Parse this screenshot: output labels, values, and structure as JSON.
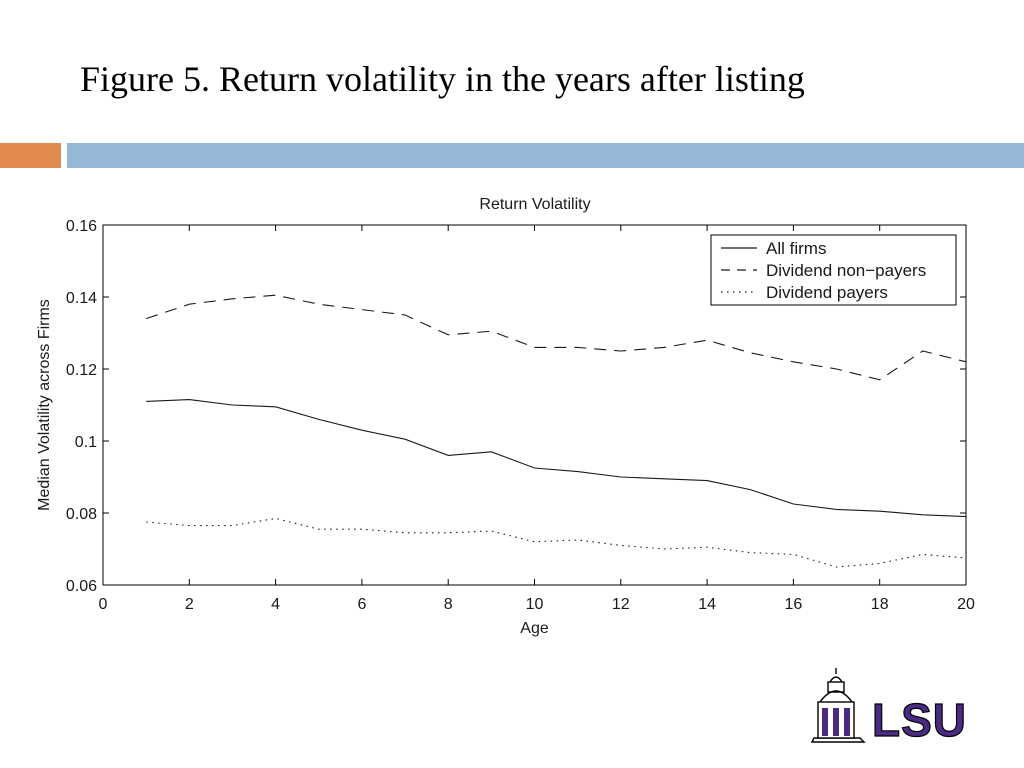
{
  "slide": {
    "title": "Figure 5. Return volatility in the years after listing"
  },
  "colors": {
    "accent_orange": "#e08a4f",
    "accent_blue": "#94b8d6",
    "logo_purple": "#4b2a84"
  },
  "logo": {
    "text": "LSU",
    "icon": "university-tower-icon"
  },
  "chart_data": {
    "type": "line",
    "title": "Return Volatility",
    "xlabel": "Age",
    "ylabel": "Median Volatility across Firms",
    "xlim": [
      0,
      20
    ],
    "ylim": [
      0.06,
      0.16
    ],
    "xticks": [
      0,
      2,
      4,
      6,
      8,
      10,
      12,
      14,
      16,
      18,
      20
    ],
    "yticks": [
      0.06,
      0.08,
      0.1,
      0.12,
      0.14,
      0.16
    ],
    "ytick_labels": [
      "0.06",
      "0.08",
      "0.1",
      "0.12",
      "0.14",
      "0.16"
    ],
    "grid": false,
    "legend_position": "top-right",
    "x": [
      1,
      2,
      3,
      4,
      5,
      6,
      7,
      8,
      9,
      10,
      11,
      12,
      13,
      14,
      15,
      16,
      17,
      18,
      19,
      20
    ],
    "series": [
      {
        "name": "All firms",
        "style": "solid",
        "values": [
          0.111,
          0.1115,
          0.11,
          0.1095,
          0.106,
          0.103,
          0.1005,
          0.096,
          0.097,
          0.0925,
          0.0915,
          0.09,
          0.0895,
          0.089,
          0.0865,
          0.0825,
          0.081,
          0.0805,
          0.0795,
          0.079
        ]
      },
      {
        "name": "Dividend non−payers",
        "style": "dashed",
        "values": [
          0.134,
          0.138,
          0.1395,
          0.1405,
          0.138,
          0.1365,
          0.135,
          0.1295,
          0.1305,
          0.126,
          0.126,
          0.125,
          0.126,
          0.128,
          0.1245,
          0.122,
          0.12,
          0.117,
          0.125,
          0.122
        ]
      },
      {
        "name": "Dividend payers",
        "style": "dotted",
        "values": [
          0.0775,
          0.0765,
          0.0765,
          0.0785,
          0.0755,
          0.0755,
          0.0745,
          0.0745,
          0.075,
          0.072,
          0.0725,
          0.071,
          0.07,
          0.0705,
          0.069,
          0.0685,
          0.065,
          0.066,
          0.0685,
          0.0675
        ]
      }
    ]
  }
}
